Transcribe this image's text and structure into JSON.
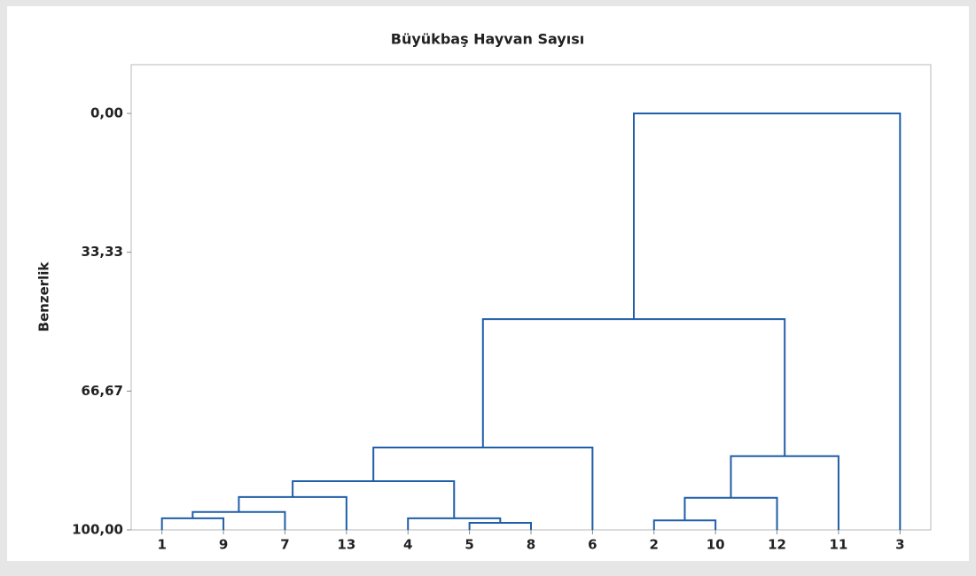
{
  "chart_data": {
    "type": "dendrogram",
    "title": "Büyükbaş Hayvan Sayısı",
    "y_label": "Benzerlik",
    "categories": [
      "1",
      "9",
      "7",
      "13",
      "4",
      "5",
      "8",
      "6",
      "2",
      "10",
      "12",
      "11",
      "3"
    ],
    "merges": [
      [
        0,
        1,
        97.2
      ],
      [
        13,
        2,
        95.7
      ],
      [
        5,
        6,
        98.3
      ],
      [
        4,
        15,
        97.2
      ],
      [
        8,
        9,
        97.7
      ],
      [
        14,
        3,
        92.1
      ],
      [
        18,
        16,
        88.3
      ],
      [
        17,
        10,
        92.3
      ],
      [
        19,
        7,
        80.2
      ],
      [
        20,
        11,
        82.3
      ],
      [
        21,
        22,
        49.4
      ],
      [
        23,
        12,
        0
      ]
    ],
    "color": "#1f5ea8",
    "ylim": [
      100,
      -11.7
    ],
    "yticks": [
      {
        "value": 0,
        "label": "0,00"
      },
      {
        "value": 33.33,
        "label": "33,33"
      },
      {
        "value": 66.67,
        "label": "66,67"
      },
      {
        "value": 100,
        "label": "100,00"
      }
    ]
  }
}
